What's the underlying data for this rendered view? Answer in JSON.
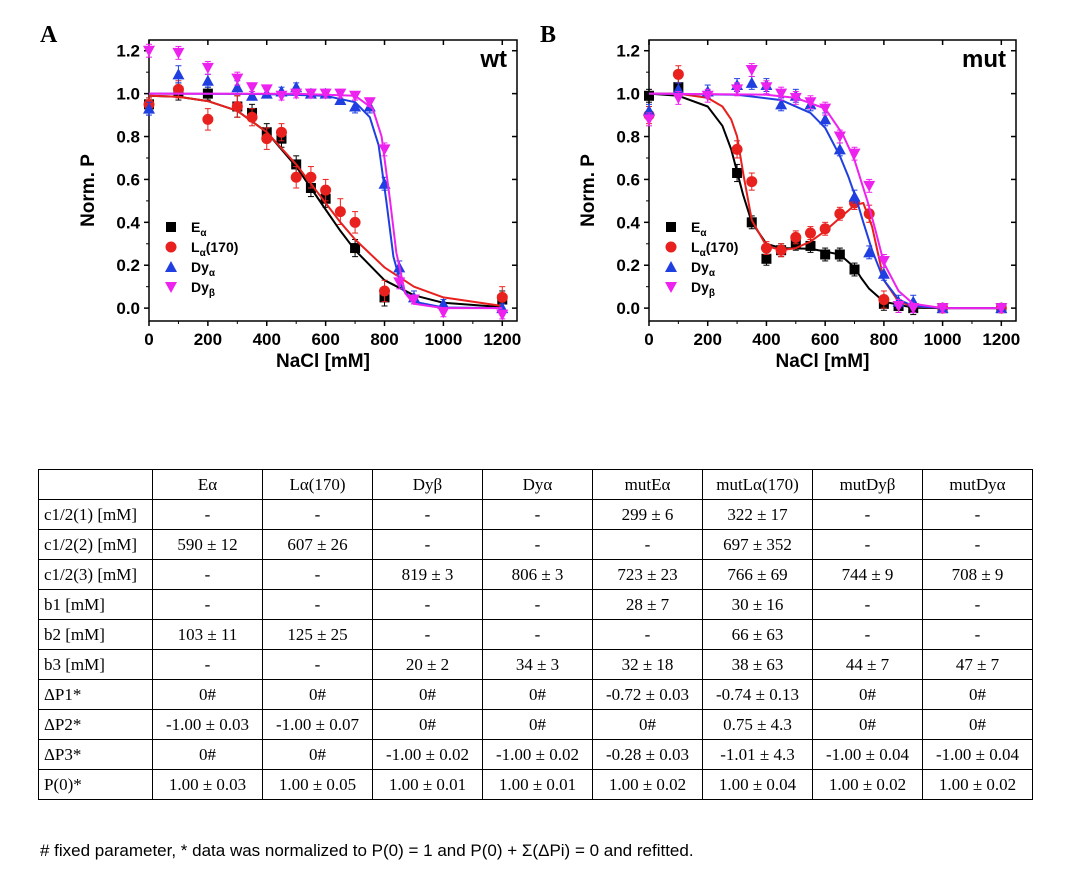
{
  "chart_data": [
    {
      "type": "scatter",
      "panel_letter": "A",
      "corner_label": "wt",
      "xlabel": "NaCl [mM]",
      "ylabel": "Norm. P",
      "xlim": [
        0,
        1250
      ],
      "ylim": [
        -0.06,
        1.25
      ],
      "xticks": [
        "0",
        "200",
        "400",
        "600",
        "800",
        "1000",
        "1200"
      ],
      "yticks": [
        "0.0",
        "0.2",
        "0.4",
        "0.6",
        "0.8",
        "1.0",
        "1.2"
      ],
      "legend_position": "bottom-left",
      "series": [
        {
          "name": "Eα",
          "label_main": "E",
          "label_sub": "α",
          "label_tail": "",
          "color": "#000000",
          "marker": "square",
          "x": [
            0,
            100,
            200,
            300,
            350,
            400,
            450,
            500,
            550,
            600,
            700,
            800,
            1200
          ],
          "y": [
            0.95,
            1.01,
            1.0,
            0.94,
            0.91,
            0.82,
            0.79,
            0.67,
            0.56,
            0.51,
            0.28,
            0.05,
            0.04
          ],
          "err": [
            0.03,
            0.04,
            0.03,
            0.05,
            0.04,
            0.04,
            0.04,
            0.04,
            0.04,
            0.04,
            0.04,
            0.04,
            0.04
          ],
          "fit": {
            "x": [
              0,
              100,
              200,
              300,
              400,
              500,
              550,
              600,
              650,
              700,
              800,
              900,
              1000,
              1200
            ],
            "y": [
              0.99,
              0.985,
              0.965,
              0.92,
              0.82,
              0.66,
              0.56,
              0.46,
              0.36,
              0.27,
              0.13,
              0.06,
              0.025,
              0.005
            ]
          }
        },
        {
          "name": "Lα(170)",
          "label_main": "L",
          "label_sub": "α",
          "label_tail": "(170)",
          "color": "#e8201e",
          "marker": "circle",
          "x": [
            0,
            100,
            200,
            300,
            350,
            400,
            450,
            500,
            550,
            600,
            650,
            700,
            800,
            1200
          ],
          "y": [
            0.95,
            1.02,
            0.88,
            0.94,
            0.89,
            0.79,
            0.82,
            0.61,
            0.61,
            0.55,
            0.45,
            0.4,
            0.08,
            0.05
          ],
          "err": [
            0.03,
            0.04,
            0.05,
            0.05,
            0.04,
            0.05,
            0.04,
            0.05,
            0.05,
            0.05,
            0.06,
            0.05,
            0.05,
            0.05
          ],
          "fit": {
            "x": [
              0,
              100,
              200,
              300,
              400,
              500,
              550,
              600,
              650,
              700,
              800,
              900,
              1000,
              1200
            ],
            "y": [
              0.99,
              0.985,
              0.965,
              0.92,
              0.82,
              0.67,
              0.58,
              0.49,
              0.4,
              0.32,
              0.19,
              0.1,
              0.05,
              0.01
            ]
          }
        },
        {
          "name": "Dyα",
          "label_main": "Dy",
          "label_sub": "α",
          "label_tail": "",
          "color": "#1f3fe0",
          "marker": "triangle-up",
          "x": [
            0,
            100,
            200,
            300,
            350,
            400,
            450,
            500,
            550,
            600,
            650,
            700,
            750,
            800,
            850,
            900,
            1000,
            1200
          ],
          "y": [
            0.93,
            1.09,
            1.06,
            1.03,
            0.99,
            1.0,
            1.01,
            1.03,
            1.0,
            1.0,
            0.97,
            0.94,
            0.94,
            0.58,
            0.19,
            0.05,
            0.02,
            0.0
          ],
          "err": [
            0.03,
            0.04,
            0.03,
            0.03,
            0.02,
            0.02,
            0.02,
            0.02,
            0.02,
            0.02,
            0.02,
            0.03,
            0.03,
            0.03,
            0.03,
            0.03,
            0.02,
            0.02
          ],
          "fit": {
            "x": [
              0,
              400,
              600,
              700,
              750,
              780,
              806,
              830,
              860,
              900,
              1000,
              1200
            ],
            "y": [
              1.0,
              0.998,
              0.99,
              0.96,
              0.89,
              0.76,
              0.5,
              0.24,
              0.09,
              0.03,
              0.003,
              0.0
            ]
          }
        },
        {
          "name": "Dyβ",
          "label_main": "Dy",
          "label_sub": "β",
          "label_tail": "",
          "color": "#ee22ee",
          "marker": "triangle-down",
          "x": [
            0,
            100,
            200,
            300,
            350,
            400,
            450,
            500,
            550,
            600,
            650,
            700,
            750,
            800,
            850,
            900,
            1000,
            1200
          ],
          "y": [
            1.2,
            1.19,
            1.12,
            1.07,
            1.03,
            1.02,
            0.99,
            1.0,
            1.0,
            1.0,
            1.0,
            0.99,
            0.96,
            0.74,
            0.12,
            0.04,
            -0.02,
            -0.03
          ],
          "err": [
            0.03,
            0.03,
            0.03,
            0.03,
            0.02,
            0.02,
            0.02,
            0.02,
            0.02,
            0.02,
            0.02,
            0.02,
            0.02,
            0.03,
            0.03,
            0.02,
            0.02,
            0.02
          ],
          "fit": {
            "x": [
              0,
              500,
              700,
              760,
              790,
              819,
              840,
              870,
              900,
              1000,
              1200
            ],
            "y": [
              1.0,
              0.999,
              0.99,
              0.93,
              0.8,
              0.5,
              0.26,
              0.07,
              0.02,
              0.0,
              0.0
            ]
          }
        }
      ]
    },
    {
      "type": "scatter",
      "panel_letter": "B",
      "corner_label": "mut",
      "xlabel": "NaCl [mM]",
      "ylabel": "Norm. P",
      "xlim": [
        0,
        1250
      ],
      "ylim": [
        -0.06,
        1.25
      ],
      "xticks": [
        "0",
        "200",
        "400",
        "600",
        "800",
        "1000",
        "1200"
      ],
      "yticks": [
        "0.0",
        "0.2",
        "0.4",
        "0.6",
        "0.8",
        "1.0",
        "1.2"
      ],
      "legend_position": "bottom-left",
      "series": [
        {
          "name": "Eα",
          "label_main": "E",
          "label_sub": "α",
          "label_tail": "",
          "color": "#000000",
          "marker": "square",
          "x": [
            0,
            100,
            300,
            350,
            400,
            450,
            500,
            550,
            600,
            650,
            700,
            800,
            850,
            900,
            1000,
            1200
          ],
          "y": [
            0.99,
            1.03,
            0.63,
            0.4,
            0.23,
            0.27,
            0.3,
            0.29,
            0.25,
            0.25,
            0.18,
            0.02,
            0.01,
            0.0,
            0.0,
            0.0
          ],
          "err": [
            0.03,
            0.04,
            0.04,
            0.03,
            0.03,
            0.03,
            0.03,
            0.03,
            0.03,
            0.03,
            0.03,
            0.03,
            0.03,
            0.03,
            0.02,
            0.02
          ],
          "fit": {
            "x": [
              0,
              100,
              200,
              250,
              280,
              299,
              320,
              350,
              400,
              450,
              550,
              650,
              700,
              723,
              750,
              800,
              900,
              1000,
              1200
            ],
            "y": [
              1.0,
              0.99,
              0.94,
              0.85,
              0.74,
              0.64,
              0.53,
              0.4,
              0.3,
              0.28,
              0.277,
              0.25,
              0.19,
              0.14,
              0.09,
              0.03,
              0.002,
              0.0,
              0.0
            ]
          }
        },
        {
          "name": "Lα(170)",
          "label_main": "L",
          "label_sub": "α",
          "label_tail": "(170)",
          "color": "#e8201e",
          "marker": "circle",
          "x": [
            0,
            100,
            300,
            350,
            400,
            450,
            500,
            550,
            600,
            650,
            700,
            750,
            800,
            1000,
            1200
          ],
          "y": [
            0.9,
            1.09,
            0.74,
            0.59,
            0.28,
            0.27,
            0.33,
            0.35,
            0.37,
            0.44,
            0.49,
            0.44,
            0.04,
            0.0,
            0.0
          ],
          "err": [
            0.04,
            0.04,
            0.04,
            0.04,
            0.03,
            0.03,
            0.03,
            0.03,
            0.03,
            0.03,
            0.03,
            0.04,
            0.04,
            0.02,
            0.02
          ],
          "fit": {
            "x": [
              0,
              100,
              200,
              250,
              280,
              300,
              322,
              350,
              400,
              450,
              500,
              550,
              600,
              650,
              700,
              730,
              760,
              800,
              850,
              900,
              1000,
              1200
            ],
            "y": [
              1.0,
              1.0,
              0.98,
              0.94,
              0.88,
              0.8,
              0.62,
              0.41,
              0.29,
              0.27,
              0.28,
              0.31,
              0.36,
              0.42,
              0.48,
              0.49,
              0.38,
              0.13,
              0.03,
              0.008,
              0.0,
              0.0
            ]
          }
        },
        {
          "name": "Dyα",
          "label_main": "Dy",
          "label_sub": "α",
          "label_tail": "",
          "color": "#1f3fe0",
          "marker": "triangle-up",
          "x": [
            0,
            100,
            200,
            300,
            350,
            400,
            450,
            500,
            550,
            600,
            650,
            700,
            750,
            800,
            850,
            900,
            1000,
            1200
          ],
          "y": [
            0.92,
            1.02,
            1.01,
            1.04,
            1.05,
            1.04,
            0.95,
            0.99,
            0.95,
            0.88,
            0.74,
            0.52,
            0.26,
            0.16,
            0.03,
            0.03,
            0.0,
            0.0
          ],
          "err": [
            0.03,
            0.03,
            0.03,
            0.03,
            0.03,
            0.03,
            0.03,
            0.03,
            0.03,
            0.03,
            0.03,
            0.03,
            0.03,
            0.03,
            0.03,
            0.03,
            0.02,
            0.02
          ],
          "fit": {
            "x": [
              0,
              300,
              450,
              550,
              600,
              650,
              680,
              708,
              730,
              760,
              800,
              850,
              900,
              1000,
              1200
            ],
            "y": [
              1.0,
              0.995,
              0.97,
              0.91,
              0.84,
              0.71,
              0.61,
              0.5,
              0.4,
              0.27,
              0.13,
              0.04,
              0.01,
              0.0,
              0.0
            ]
          }
        },
        {
          "name": "Dyβ",
          "label_main": "Dy",
          "label_sub": "β",
          "label_tail": "",
          "color": "#ee22ee",
          "marker": "triangle-down",
          "x": [
            0,
            100,
            200,
            300,
            350,
            400,
            450,
            500,
            550,
            600,
            650,
            700,
            750,
            800,
            850,
            900,
            1000,
            1200
          ],
          "y": [
            0.88,
            0.98,
            0.99,
            1.02,
            1.11,
            1.03,
            1.0,
            0.98,
            0.96,
            0.93,
            0.8,
            0.72,
            0.57,
            0.22,
            0.01,
            0.0,
            0.0,
            0.0
          ],
          "err": [
            0.03,
            0.03,
            0.03,
            0.03,
            0.03,
            0.03,
            0.03,
            0.03,
            0.03,
            0.03,
            0.03,
            0.03,
            0.03,
            0.03,
            0.03,
            0.02,
            0.02,
            0.02
          ],
          "fit": {
            "x": [
              0,
              400,
              500,
              600,
              660,
              700,
              744,
              770,
              800,
              850,
              900,
              1000,
              1200
            ],
            "y": [
              1.0,
              0.995,
              0.98,
              0.93,
              0.81,
              0.69,
              0.5,
              0.37,
              0.21,
              0.08,
              0.02,
              0.0,
              0.0
            ]
          }
        }
      ]
    }
  ],
  "table": {
    "headers": [
      "",
      "Eα",
      "Lα(170)",
      "Dyβ",
      "Dyα",
      "mutEα",
      "mutLα(170)",
      "mutDyβ",
      "mutDyα"
    ],
    "rows": [
      {
        "label": "c1/2(1) [mM]",
        "cells": [
          "-",
          "-",
          "-",
          "-",
          "299 ± 6",
          "322 ± 17",
          "-",
          "-"
        ]
      },
      {
        "label": "c1/2(2) [mM]",
        "cells": [
          "590 ± 12",
          "607 ± 26",
          "-",
          "-",
          "-",
          "697 ± 352",
          "-",
          "-"
        ]
      },
      {
        "label": "c1/2(3) [mM]",
        "cells": [
          "-",
          "-",
          "819 ± 3",
          "806 ± 3",
          "723 ± 23",
          "766 ± 69",
          "744 ± 9",
          "708 ± 9"
        ]
      },
      {
        "label": "b1 [mM]",
        "cells": [
          "-",
          "-",
          "-",
          "-",
          "28 ± 7",
          "30 ± 16",
          "-",
          "-"
        ]
      },
      {
        "label": "b2 [mM]",
        "cells": [
          "103 ± 11",
          "125 ± 25",
          "-",
          "-",
          "-",
          "66 ± 63",
          "-",
          "-"
        ]
      },
      {
        "label": "b3 [mM]",
        "cells": [
          "-",
          "-",
          "20 ± 2",
          "34 ± 3",
          "32 ± 18",
          "38 ± 63",
          "44 ± 7",
          "47 ± 7"
        ]
      },
      {
        "label": "ΔP1*",
        "cells": [
          "0#",
          "0#",
          "0#",
          "0#",
          "-0.72 ± 0.03",
          "-0.74 ± 0.13",
          "0#",
          "0#"
        ]
      },
      {
        "label": "ΔP2*",
        "cells": [
          "-1.00 ± 0.03",
          "-1.00 ± 0.07",
          "0#",
          "0#",
          "0#",
          "0.75 ± 4.3",
          "0#",
          "0#"
        ]
      },
      {
        "label": "ΔP3*",
        "cells": [
          "0#",
          "0#",
          "-1.00 ± 0.02",
          "-1.00 ± 0.02",
          "-0.28 ± 0.03",
          "-1.01 ± 4.3",
          "-1.00 ± 0.04",
          "-1.00 ± 0.04"
        ]
      },
      {
        "label": "P(0)*",
        "cells": [
          "1.00 ± 0.03",
          "1.00 ± 0.05",
          "1.00 ± 0.01",
          "1.00 ± 0.01",
          "1.00 ± 0.02",
          "1.00 ± 0.04",
          "1.00 ± 0.02",
          "1.00 ± 0.02"
        ]
      }
    ]
  },
  "footnote": "# fixed parameter, * data was normalized to P(0) = 1 and P(0) + Σ(ΔPi) = 0 and refitted."
}
